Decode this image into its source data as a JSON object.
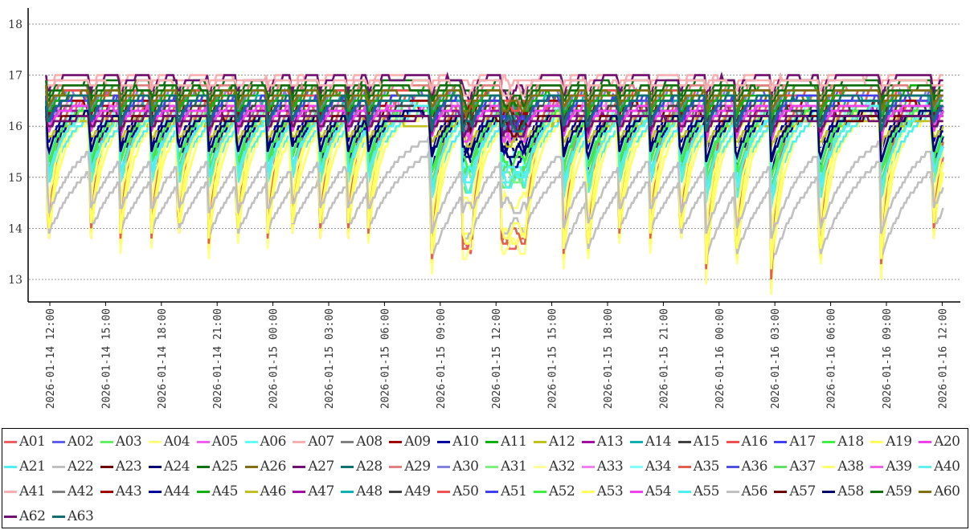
{
  "chart_data": {
    "type": "line",
    "title": "",
    "xlabel": "",
    "ylabel": "",
    "x_start": "2026-01-14 12:00",
    "x_unit": "hours since 2026-01-14 12:00",
    "xlim_hours": [
      -1.2,
      49
    ],
    "ylim": [
      12.55,
      18.3
    ],
    "grid": "horizontal dotted",
    "legend_placement": "bottom",
    "y_ticks": [
      "13",
      "14",
      "15",
      "16",
      "17",
      "18"
    ],
    "x_ticks": [
      "2026-01-14 12:00",
      "2026-01-14 15:00",
      "2026-01-14 18:00",
      "2026-01-14 21:00",
      "2026-01-15 00:00",
      "2026-01-15 03:00",
      "2026-01-15 06:00",
      "2026-01-15 09:00",
      "2026-01-15 12:00",
      "2026-01-15 15:00",
      "2026-01-15 18:00",
      "2026-01-15 21:00",
      "2026-01-16 00:00",
      "2026-01-16 03:00",
      "2026-01-16 06:00",
      "2026-01-16 09:00",
      "2026-01-16 12:00"
    ],
    "data_range_hours": [
      -0.2,
      48.1
    ],
    "dip_events": [
      {
        "t": -0.1,
        "min": 13.5,
        "hold": 0
      },
      {
        "t": 2.17,
        "min": 13.6,
        "hold": 0
      },
      {
        "t": 3.8,
        "min": 13.6,
        "hold": 0
      },
      {
        "t": 5.45,
        "min": 13.6,
        "hold": 0
      },
      {
        "t": 6.9,
        "min": 13.6,
        "hold": 0
      },
      {
        "t": 8.55,
        "min": 13.5,
        "hold": 0
      },
      {
        "t": 10.07,
        "min": 13.5,
        "hold": 0
      },
      {
        "t": 11.7,
        "min": 13.6,
        "hold": 0
      },
      {
        "t": 13.0,
        "min": 13.7,
        "hold": 0
      },
      {
        "t": 14.5,
        "min": 13.6,
        "hold": 0
      },
      {
        "t": 16.0,
        "min": 13.6,
        "hold": 0
      },
      {
        "t": 17.1,
        "min": 13.6,
        "hold": 0
      },
      {
        "t": 20.5,
        "min": 12.9,
        "hold": 0
      },
      {
        "t": 22.2,
        "min": 13.6,
        "hold": 0.5
      },
      {
        "t": 24.3,
        "min": 13.7,
        "hold": 1.3
      },
      {
        "t": 27.6,
        "min": 13.1,
        "hold": 0
      },
      {
        "t": 28.9,
        "min": 13.1,
        "hold": 0
      },
      {
        "t": 30.6,
        "min": 13.6,
        "hold": 0
      },
      {
        "t": 32.3,
        "min": 13.6,
        "hold": 0
      },
      {
        "t": 33.9,
        "min": 13.5,
        "hold": 0
      },
      {
        "t": 35.3,
        "min": 13.0,
        "hold": 0
      },
      {
        "t": 36.9,
        "min": 13.0,
        "hold": 0
      },
      {
        "t": 38.8,
        "min": 12.8,
        "hold": 0
      },
      {
        "t": 41.4,
        "min": 13.0,
        "hold": 0
      },
      {
        "t": 44.7,
        "min": 13.0,
        "hold": 0
      },
      {
        "t": 47.5,
        "min": 13.6,
        "hold": 0
      }
    ],
    "series": [
      {
        "name": "A01",
        "color": "#f06060",
        "base": 16.6,
        "depth": 1.0,
        "tau": 0.6
      },
      {
        "name": "A02",
        "color": "#6060f0",
        "base": 16.7,
        "depth": 0.15,
        "tau": 0.4
      },
      {
        "name": "A03",
        "color": "#60f060",
        "base": 16.4,
        "depth": 0.55,
        "tau": 0.8
      },
      {
        "name": "A04",
        "color": "#ffff80",
        "base": 16.5,
        "depth": 1.02,
        "tau": 0.6
      },
      {
        "name": "A05",
        "color": "#f060f0",
        "base": 16.5,
        "depth": 0.2,
        "tau": 0.4
      },
      {
        "name": "A06",
        "color": "#60ffff",
        "base": 16.6,
        "depth": 0.5,
        "tau": 1.0
      },
      {
        "name": "A07",
        "color": "#f8b0b0",
        "base": 17.0,
        "depth": 0.05,
        "tau": 0.3
      },
      {
        "name": "A08",
        "color": "#808080",
        "base": 16.3,
        "depth": 0.1,
        "tau": 0.4
      },
      {
        "name": "A09",
        "color": "#a00000",
        "base": 16.4,
        "depth": 0.1,
        "tau": 0.4
      },
      {
        "name": "A10",
        "color": "#0000a0",
        "base": 16.3,
        "depth": 0.25,
        "tau": 0.6
      },
      {
        "name": "A11",
        "color": "#10b010",
        "base": 16.8,
        "depth": 0.15,
        "tau": 0.5
      },
      {
        "name": "A12",
        "color": "#c0c020",
        "base": 16.2,
        "depth": 0.1,
        "tau": 0.5
      },
      {
        "name": "A13",
        "color": "#a010a0",
        "base": 16.4,
        "depth": 0.1,
        "tau": 0.4
      },
      {
        "name": "A14",
        "color": "#10b0b0",
        "base": 16.5,
        "depth": 0.2,
        "tau": 0.5
      },
      {
        "name": "A15",
        "color": "#404040",
        "base": 16.4,
        "depth": 0.1,
        "tau": 0.4
      },
      {
        "name": "A16",
        "color": "#f05050",
        "base": 16.7,
        "depth": 0.1,
        "tau": 0.4
      },
      {
        "name": "A17",
        "color": "#4040f0",
        "base": 16.6,
        "depth": 0.2,
        "tau": 0.5
      },
      {
        "name": "A18",
        "color": "#40f040",
        "base": 16.3,
        "depth": 0.45,
        "tau": 0.9
      },
      {
        "name": "A19",
        "color": "#ffff60",
        "base": 16.2,
        "depth": 0.95,
        "tau": 0.7
      },
      {
        "name": "A20",
        "color": "#f040f0",
        "base": 16.4,
        "depth": 0.2,
        "tau": 0.4
      },
      {
        "name": "A21",
        "color": "#50f0f0",
        "base": 16.4,
        "depth": 0.55,
        "tau": 1.2
      },
      {
        "name": "A22",
        "color": "#c0c0c0",
        "base": 16.0,
        "depth": 0.85,
        "tau": 2.5
      },
      {
        "name": "A23",
        "color": "#700000",
        "base": 16.3,
        "depth": 0.1,
        "tau": 0.4
      },
      {
        "name": "A24",
        "color": "#000070",
        "base": 16.3,
        "depth": 0.3,
        "tau": 0.7
      },
      {
        "name": "A25",
        "color": "#107010",
        "base": 16.9,
        "depth": 0.1,
        "tau": 0.4
      },
      {
        "name": "A26",
        "color": "#807010",
        "base": 16.6,
        "depth": 0.1,
        "tau": 0.4
      },
      {
        "name": "A27",
        "color": "#701070",
        "base": 17.0,
        "depth": 0.1,
        "tau": 0.4
      },
      {
        "name": "A28",
        "color": "#107070",
        "base": 16.5,
        "depth": 0.2,
        "tau": 0.4
      },
      {
        "name": "A29",
        "color": "#e08080",
        "base": 16.8,
        "depth": 0.1,
        "tau": 0.3
      },
      {
        "name": "A30",
        "color": "#8080e0",
        "base": 16.7,
        "depth": 0.15,
        "tau": 0.4
      },
      {
        "name": "A31",
        "color": "#80f080",
        "base": 16.3,
        "depth": 0.5,
        "tau": 0.8
      },
      {
        "name": "A32",
        "color": "#ffffa0",
        "base": 16.6,
        "depth": 0.3,
        "tau": 0.6
      },
      {
        "name": "A33",
        "color": "#f080f0",
        "base": 16.5,
        "depth": 0.2,
        "tau": 0.4
      },
      {
        "name": "A34",
        "color": "#80ffff",
        "base": 16.5,
        "depth": 0.4,
        "tau": 0.8
      },
      {
        "name": "A35",
        "color": "#e06050",
        "base": 16.6,
        "depth": 0.95,
        "tau": 0.5
      },
      {
        "name": "A36",
        "color": "#5050e0",
        "base": 16.6,
        "depth": 0.2,
        "tau": 0.5
      },
      {
        "name": "A37",
        "color": "#60e060",
        "base": 16.5,
        "depth": 0.5,
        "tau": 0.8
      },
      {
        "name": "A38",
        "color": "#ffff70",
        "base": 16.4,
        "depth": 0.7,
        "tau": 0.7
      },
      {
        "name": "A39",
        "color": "#f060e0",
        "base": 16.4,
        "depth": 0.2,
        "tau": 0.4
      },
      {
        "name": "A40",
        "color": "#60f0f0",
        "base": 16.4,
        "depth": 0.5,
        "tau": 1.0
      },
      {
        "name": "A41",
        "color": "#f8b0b0",
        "base": 16.9,
        "depth": 0.05,
        "tau": 0.3
      },
      {
        "name": "A42",
        "color": "#808080",
        "base": 16.3,
        "depth": 0.1,
        "tau": 0.4
      },
      {
        "name": "A43",
        "color": "#a00000",
        "base": 16.5,
        "depth": 0.1,
        "tau": 0.4
      },
      {
        "name": "A44",
        "color": "#0000a0",
        "base": 16.2,
        "depth": 0.35,
        "tau": 0.7
      },
      {
        "name": "A45",
        "color": "#10b010",
        "base": 16.7,
        "depth": 0.15,
        "tau": 0.5
      },
      {
        "name": "A46",
        "color": "#c0c020",
        "base": 16.1,
        "depth": 0.15,
        "tau": 0.6
      },
      {
        "name": "A47",
        "color": "#a010a0",
        "base": 16.3,
        "depth": 0.1,
        "tau": 0.4
      },
      {
        "name": "A48",
        "color": "#10b0b0",
        "base": 16.6,
        "depth": 0.2,
        "tau": 0.4
      },
      {
        "name": "A49",
        "color": "#404040",
        "base": 16.4,
        "depth": 0.1,
        "tau": 0.4
      },
      {
        "name": "A50",
        "color": "#f05050",
        "base": 16.7,
        "depth": 0.1,
        "tau": 0.4
      },
      {
        "name": "A51",
        "color": "#4040f0",
        "base": 16.6,
        "depth": 0.2,
        "tau": 0.5
      },
      {
        "name": "A52",
        "color": "#40f040",
        "base": 16.4,
        "depth": 0.4,
        "tau": 0.8
      },
      {
        "name": "A53",
        "color": "#ffff60",
        "base": 16.3,
        "depth": 0.9,
        "tau": 0.6
      },
      {
        "name": "A54",
        "color": "#f040f0",
        "base": 16.4,
        "depth": 0.2,
        "tau": 0.4
      },
      {
        "name": "A55",
        "color": "#50f0f0",
        "base": 16.5,
        "depth": 0.5,
        "tau": 1.1
      },
      {
        "name": "A56",
        "color": "#c0c0c0",
        "base": 16.1,
        "depth": 0.7,
        "tau": 2.0
      },
      {
        "name": "A57",
        "color": "#700000",
        "base": 16.2,
        "depth": 0.1,
        "tau": 0.4
      },
      {
        "name": "A58",
        "color": "#000070",
        "base": 16.3,
        "depth": 0.3,
        "tau": 0.7
      },
      {
        "name": "A59",
        "color": "#107010",
        "base": 16.8,
        "depth": 0.1,
        "tau": 0.4
      },
      {
        "name": "A60",
        "color": "#807010",
        "base": 16.7,
        "depth": 0.1,
        "tau": 0.4
      },
      {
        "name": "A62",
        "color": "#701070",
        "base": 16.2,
        "depth": 0.1,
        "tau": 0.4
      },
      {
        "name": "A63",
        "color": "#107070",
        "base": 16.6,
        "depth": 0.2,
        "tau": 0.4
      }
    ]
  }
}
